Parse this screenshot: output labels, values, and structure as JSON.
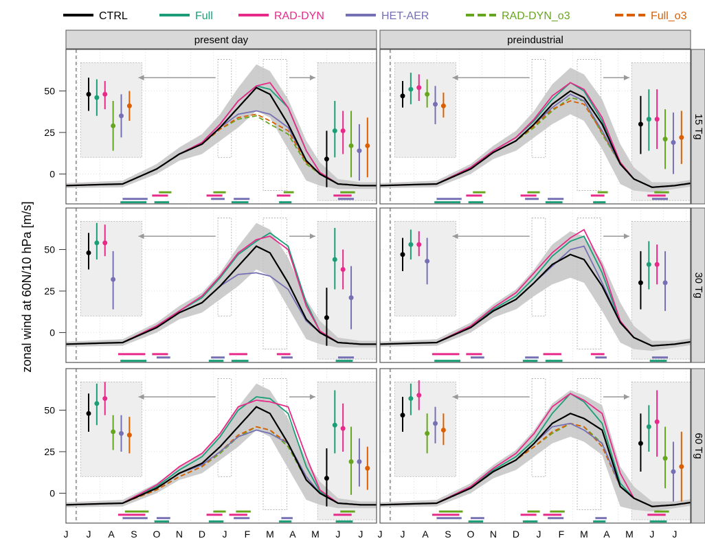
{
  "chart_data": {
    "type": "line",
    "ylabel": "zonal wind at 60N/10 hPa  [m/s]",
    "xlabel": "",
    "x_tick_labels": [
      "J",
      "J",
      "A",
      "S",
      "O",
      "N",
      "D",
      "J",
      "F",
      "M",
      "A",
      "M",
      "J",
      "J"
    ],
    "y_ticks": [
      0,
      25,
      50
    ],
    "ylim": [
      -18,
      75
    ],
    "columns": [
      "present day",
      "preindustrial"
    ],
    "rows": [
      "15 Tg",
      "30 Tg",
      "60 Tg"
    ],
    "legend_position": "top",
    "legend": [
      {
        "name": "CTRL",
        "color": "#000000",
        "dashed": false
      },
      {
        "name": "Full",
        "color": "#1b9e77",
        "dashed": false
      },
      {
        "name": "RAD-DYN",
        "color": "#e7298a",
        "dashed": false
      },
      {
        "name": "HET-AER",
        "color": "#7570b3",
        "dashed": false
      },
      {
        "name": "RAD-DYN_o3",
        "color": "#66a61e",
        "dashed": true
      },
      {
        "name": "Full_o3",
        "color": "#d95f02",
        "dashed": true
      }
    ],
    "colors": {
      "band": "#c4c4c4",
      "shade": "#eeeeee",
      "strip": "#d9d9d9",
      "grid": "#c8c8c8",
      "arrow": "#999999"
    },
    "x_anchor_months": [
      0,
      2.5,
      4,
      5,
      6,
      6.8,
      7.6,
      8.4,
      9,
      9.8,
      10.6,
      11.2,
      12,
      13,
      14
    ],
    "ctrl_anchor_values": [
      -7,
      -6,
      3,
      12,
      18,
      28,
      40,
      52,
      48,
      30,
      8,
      0,
      -6,
      -7,
      -7
    ],
    "ctrl_band_halfwidth": [
      1.5,
      2,
      3,
      4,
      6,
      8,
      12,
      14,
      14,
      15,
      12,
      7,
      3,
      2,
      2
    ],
    "panels": [
      {
        "row": 0,
        "col": 0,
        "series": {
          "CTRL": [
            -7,
            -6,
            3,
            12,
            18,
            28,
            40,
            52,
            48,
            30,
            8,
            0,
            -6,
            -7,
            -7
          ],
          "Full": [
            -7,
            -6,
            3,
            12,
            19,
            30,
            44,
            53,
            51,
            40,
            14,
            1,
            -6,
            -7,
            -7
          ],
          "RAD-DYN": [
            -7,
            -6,
            3,
            12,
            19,
            30,
            44,
            53,
            55,
            40,
            14,
            1,
            -6,
            -7,
            -7
          ],
          "HET-AER": [
            -7,
            -6,
            3,
            12,
            18,
            28,
            36,
            38,
            36,
            28,
            8,
            0,
            -6,
            -7,
            -7
          ],
          "RAD-DYN_o3": [
            -7,
            -6,
            3,
            12,
            18,
            27,
            33,
            35,
            30,
            24,
            6,
            0,
            -6,
            -7,
            -7
          ],
          "Full_o3": [
            -7,
            -6,
            3,
            12,
            18,
            27,
            34,
            36,
            32,
            26,
            7,
            0,
            -6,
            -7,
            -7
          ]
        },
        "points_left": {
          "CTRL": [
            48,
            38,
            58
          ],
          "Full": [
            46,
            35,
            57
          ],
          "RAD-DYN": [
            48,
            39,
            56
          ],
          "RAD-DYN_o3": [
            29,
            14,
            44
          ],
          "HET-AER": [
            35,
            22,
            48
          ],
          "Full_o3": [
            41,
            32,
            50
          ]
        },
        "points_right": {
          "CTRL": [
            9,
            -8,
            26
          ],
          "Full": [
            26,
            10,
            44
          ],
          "RAD-DYN": [
            26,
            12,
            38
          ],
          "RAD-DYN_o3": [
            17,
            -2,
            38
          ],
          "HET-AER": [
            14,
            -4,
            30
          ],
          "Full_o3": [
            17,
            -2,
            34
          ]
        }
      },
      {
        "row": 0,
        "col": 1,
        "series": {
          "CTRL": [
            -7,
            -6,
            3,
            13,
            20,
            30,
            42,
            50,
            46,
            30,
            6,
            -3,
            -8,
            -7,
            -5
          ],
          "Full": [
            -7,
            -6,
            4,
            14,
            22,
            32,
            45,
            55,
            50,
            32,
            6,
            -3,
            -8,
            -7,
            -5
          ],
          "RAD-DYN": [
            -7,
            -6,
            4,
            14,
            22,
            33,
            47,
            55,
            51,
            34,
            7,
            -3,
            -8,
            -7,
            -5
          ],
          "HET-AER": [
            -7,
            -6,
            3,
            13,
            20,
            30,
            40,
            48,
            44,
            26,
            6,
            -3,
            -8,
            -7,
            -5
          ],
          "RAD-DYN_o3": [
            -7,
            -6,
            3,
            13,
            20,
            28,
            38,
            46,
            44,
            24,
            6,
            -3,
            -8,
            -7,
            -5
          ],
          "Full_o3": [
            -7,
            -6,
            3,
            13,
            20,
            29,
            39,
            44,
            42,
            25,
            6,
            -3,
            -8,
            -7,
            -5
          ]
        },
        "points_left": {
          "CTRL": [
            47,
            40,
            56
          ],
          "Full": [
            51,
            42,
            61
          ],
          "RAD-DYN": [
            52,
            44,
            60
          ],
          "RAD-DYN_o3": [
            48,
            40,
            57
          ],
          "HET-AER": [
            42,
            30,
            53
          ],
          "Full_o3": [
            41,
            34,
            49
          ]
        },
        "points_right": {
          "CTRL": [
            30,
            12,
            47
          ],
          "Full": [
            33,
            14,
            51
          ],
          "RAD-DYN": [
            33,
            15,
            51
          ],
          "RAD-DYN_o3": [
            21,
            3,
            39
          ],
          "HET-AER": [
            19,
            0,
            37
          ],
          "Full_o3": [
            22,
            6,
            38
          ]
        }
      },
      {
        "row": 1,
        "col": 0,
        "series": {
          "CTRL": [
            -7,
            -6,
            3,
            12,
            18,
            28,
            40,
            52,
            48,
            30,
            8,
            0,
            -6,
            -7,
            -7
          ],
          "Full": [
            -7,
            -6,
            4,
            13,
            21,
            33,
            47,
            55,
            60,
            52,
            18,
            1,
            -6,
            -7,
            -7
          ],
          "RAD-DYN": [
            -7,
            -6,
            4,
            13,
            22,
            34,
            48,
            56,
            58,
            50,
            16,
            1,
            -6,
            -7,
            -7
          ],
          "HET-AER": [
            -7,
            -6,
            3,
            12,
            18,
            28,
            35,
            36,
            34,
            26,
            7,
            0,
            -6,
            -7,
            -7
          ]
        },
        "points_left": {
          "CTRL": [
            48,
            38,
            60
          ],
          "Full": [
            54,
            44,
            66
          ],
          "RAD-DYN": [
            54,
            46,
            65
          ],
          "HET-AER": [
            32,
            14,
            49
          ]
        },
        "points_right": {
          "CTRL": [
            9,
            -8,
            27
          ],
          "Full": [
            44,
            26,
            63
          ],
          "RAD-DYN": [
            38,
            26,
            50
          ],
          "HET-AER": [
            21,
            2,
            40
          ]
        }
      },
      {
        "row": 1,
        "col": 1,
        "series": {
          "CTRL": [
            -7,
            -6,
            3,
            13,
            20,
            30,
            41,
            47,
            44,
            28,
            6,
            -3,
            -8,
            -7,
            -5
          ],
          "Full": [
            -7,
            -6,
            4,
            14,
            22,
            33,
            46,
            55,
            58,
            36,
            6,
            -3,
            -8,
            -7,
            -5
          ],
          "RAD-DYN": [
            -7,
            -6,
            4,
            15,
            24,
            36,
            48,
            57,
            62,
            40,
            7,
            -3,
            -8,
            -7,
            -5
          ],
          "HET-AER": [
            -7,
            -6,
            3,
            13,
            20,
            30,
            40,
            50,
            52,
            30,
            6,
            -3,
            -8,
            -7,
            -5
          ]
        },
        "points_left": {
          "CTRL": [
            47,
            37,
            57
          ],
          "Full": [
            53,
            44,
            62
          ],
          "RAD-DYN": [
            53,
            46,
            61
          ],
          "HET-AER": [
            43,
            29,
            57
          ]
        },
        "points_right": {
          "CTRL": [
            30,
            14,
            49
          ],
          "Full": [
            41,
            26,
            55
          ],
          "RAD-DYN": [
            41,
            29,
            53
          ],
          "HET-AER": [
            30,
            13,
            49
          ]
        }
      },
      {
        "row": 2,
        "col": 0,
        "series": {
          "CTRL": [
            -7,
            -6,
            3,
            12,
            18,
            28,
            40,
            52,
            48,
            30,
            8,
            0,
            -6,
            -7,
            -7
          ],
          "Full": [
            -7,
            -6,
            4,
            14,
            22,
            34,
            50,
            58,
            57,
            48,
            16,
            1,
            -6,
            -7,
            -7
          ],
          "RAD-DYN": [
            -7,
            -6,
            5,
            16,
            24,
            36,
            52,
            56,
            55,
            52,
            22,
            2,
            -6,
            -7,
            -7
          ],
          "HET-AER": [
            -7,
            -6,
            3,
            12,
            17,
            25,
            34,
            38,
            36,
            30,
            10,
            0,
            -6,
            -7,
            -7
          ],
          "RAD-DYN_o3": [
            -7,
            -6,
            2,
            10,
            16,
            24,
            34,
            40,
            38,
            28,
            8,
            0,
            -6,
            -7,
            -7
          ],
          "Full_o3": [
            -7,
            -6,
            2,
            10,
            16,
            25,
            35,
            40,
            38,
            30,
            10,
            0,
            -6,
            -7,
            -7
          ]
        },
        "points_left": {
          "CTRL": [
            48,
            37,
            60
          ],
          "Full": [
            54,
            41,
            66
          ],
          "RAD-DYN": [
            57,
            47,
            67
          ],
          "RAD-DYN_o3": [
            37,
            26,
            47
          ],
          "HET-AER": [
            36,
            25,
            47
          ],
          "Full_o3": [
            35,
            24,
            46
          ]
        },
        "points_right": {
          "CTRL": [
            9,
            -8,
            27
          ],
          "Full": [
            41,
            24,
            62
          ],
          "RAD-DYN": [
            39,
            25,
            54
          ],
          "RAD-DYN_o3": [
            19,
            -1,
            40
          ],
          "HET-AER": [
            19,
            4,
            33
          ],
          "Full_o3": [
            15,
            2,
            28
          ]
        }
      },
      {
        "row": 2,
        "col": 1,
        "series": {
          "CTRL": [
            -7,
            -6,
            3,
            13,
            20,
            30,
            42,
            48,
            45,
            38,
            4,
            -3,
            -8,
            -7,
            -5
          ],
          "Full": [
            -7,
            -6,
            4,
            14,
            22,
            32,
            48,
            60,
            55,
            42,
            6,
            -3,
            -8,
            -7,
            -5
          ],
          "RAD-DYN": [
            -7,
            -6,
            4,
            15,
            24,
            36,
            52,
            60,
            56,
            48,
            12,
            -3,
            -8,
            -7,
            -5
          ],
          "HET-AER": [
            -7,
            -6,
            3,
            13,
            20,
            30,
            40,
            42,
            38,
            30,
            4,
            -3,
            -8,
            -7,
            -5
          ],
          "RAD-DYN_o3": [
            -7,
            -6,
            3,
            13,
            20,
            28,
            36,
            42,
            40,
            30,
            4,
            -3,
            -8,
            -7,
            -5
          ],
          "Full_o3": [
            -7,
            -6,
            3,
            13,
            20,
            28,
            37,
            42,
            40,
            28,
            4,
            -3,
            -8,
            -7,
            -5
          ]
        },
        "points_left": {
          "CTRL": [
            47,
            37,
            58
          ],
          "Full": [
            57,
            47,
            66
          ],
          "RAD-DYN": [
            59,
            50,
            68
          ],
          "RAD-DYN_o3": [
            36,
            24,
            48
          ],
          "HET-AER": [
            42,
            30,
            52
          ],
          "Full_o3": [
            38,
            29,
            48
          ]
        },
        "points_right": {
          "CTRL": [
            30,
            13,
            48
          ],
          "Full": [
            40,
            25,
            53
          ],
          "RAD-DYN": [
            43,
            22,
            62
          ],
          "RAD-DYN_o3": [
            21,
            3,
            40
          ],
          "HET-AER": [
            13,
            -5,
            31
          ],
          "Full_o3": [
            16,
            -5,
            37
          ]
        }
      }
    ]
  }
}
